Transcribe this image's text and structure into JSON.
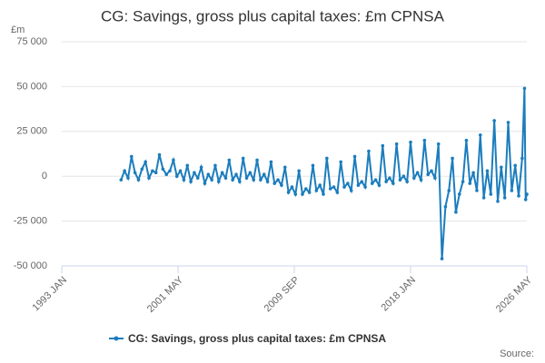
{
  "chart_data": {
    "type": "line",
    "title": "CG: Savings, gross plus capital taxes: £m CPNSA",
    "y_label": "£m",
    "source": "Source:",
    "x": [
      "1997 APR",
      "1997 JUL",
      "1997 OCT",
      "1998 JAN",
      "1998 APR",
      "1998 JUL",
      "1998 OCT",
      "1999 JAN",
      "1999 APR",
      "1999 JUL",
      "1999 OCT",
      "2000 JAN",
      "2000 APR",
      "2000 JUL",
      "2000 OCT",
      "2001 JAN",
      "2001 APR",
      "2001 JUL",
      "2001 OCT",
      "2002 JAN",
      "2002 APR",
      "2002 JUL",
      "2002 OCT",
      "2003 JAN",
      "2003 APR",
      "2003 JUL",
      "2003 OCT",
      "2004 JAN",
      "2004 APR",
      "2004 JUL",
      "2004 OCT",
      "2005 JAN",
      "2005 APR",
      "2005 JUL",
      "2005 OCT",
      "2006 JAN",
      "2006 APR",
      "2006 JUL",
      "2006 OCT",
      "2007 JAN",
      "2007 APR",
      "2007 JUL",
      "2007 OCT",
      "2008 JAN",
      "2008 APR",
      "2008 JUL",
      "2008 OCT",
      "2009 JAN",
      "2009 APR",
      "2009 JUL",
      "2009 OCT",
      "2010 JAN",
      "2010 APR",
      "2010 JUL",
      "2010 OCT",
      "2011 JAN",
      "2011 APR",
      "2011 JUL",
      "2011 OCT",
      "2012 JAN",
      "2012 APR",
      "2012 JUL",
      "2012 OCT",
      "2013 JAN",
      "2013 APR",
      "2013 JUL",
      "2013 OCT",
      "2014 JAN",
      "2014 APR",
      "2014 JUL",
      "2014 OCT",
      "2015 JAN",
      "2015 APR",
      "2015 JUL",
      "2015 OCT",
      "2016 JAN",
      "2016 APR",
      "2016 JUL",
      "2016 OCT",
      "2017 JAN",
      "2017 APR",
      "2017 JUL",
      "2017 OCT",
      "2018 JAN",
      "2018 APR",
      "2018 JUL",
      "2018 OCT",
      "2019 JAN",
      "2019 APR",
      "2019 JUL",
      "2019 OCT",
      "2020 JAN",
      "2020 APR",
      "2020 JUL",
      "2020 OCT",
      "2021 JAN",
      "2021 APR",
      "2021 JUL",
      "2021 OCT",
      "2022 JAN",
      "2022 APR",
      "2022 JUL",
      "2022 OCT",
      "2023 JAN",
      "2023 APR",
      "2023 JUL",
      "2023 OCT",
      "2024 JAN",
      "2024 APR",
      "2024 JUL",
      "2024 OCT",
      "2025 JAN",
      "2025 APR",
      "2025 JUL",
      "2025 OCT",
      "2026 JAN",
      "2026 MAR",
      "2026 APR",
      "2026 MAY"
    ],
    "series": [
      {
        "name": "CG: Savings, gross plus capital taxes: £m CPNSA",
        "color": "#1b7dbd",
        "values": [
          -2000,
          3000,
          -1000,
          11000,
          2000,
          -2000,
          4000,
          8000,
          -1000,
          3000,
          2000,
          12000,
          4000,
          1000,
          3000,
          9000,
          0,
          3000,
          -2000,
          6000,
          -3000,
          2000,
          -1000,
          5000,
          -4000,
          1000,
          -2000,
          6000,
          -3000,
          2000,
          -1000,
          9000,
          -2000,
          1000,
          -3000,
          10000,
          -1000,
          2000,
          -2000,
          9000,
          -2000,
          1000,
          -3000,
          8000,
          -4000,
          -2000,
          -5000,
          5000,
          -9000,
          -6000,
          -10000,
          3000,
          -10000,
          -7000,
          -9000,
          6000,
          -8000,
          -5000,
          -10000,
          10000,
          -7000,
          -6000,
          -9000,
          8000,
          -6000,
          -4000,
          -8000,
          11000,
          -5000,
          -3000,
          -6000,
          14000,
          -4000,
          -2000,
          -5000,
          17000,
          -3000,
          -1000,
          -4000,
          18000,
          -2000,
          0,
          -3000,
          19000,
          -1000,
          2000,
          -2000,
          20000,
          1000,
          3000,
          -1000,
          18000,
          -46000,
          -17000,
          -8000,
          10000,
          -20000,
          -10000,
          -3000,
          20000,
          -4000,
          2000,
          -8000,
          23000,
          -12000,
          3000,
          -10000,
          31000,
          -14000,
          5000,
          -12000,
          30000,
          -8000,
          6000,
          -11000,
          10000,
          49000,
          -13000,
          -10000
        ]
      }
    ],
    "xlim": [
      "1993 JAN",
      "2026 MAY"
    ],
    "xticks": [
      "1993 JAN",
      "2001 MAY",
      "2009 SEP",
      "2018 JAN",
      "2026 MAY"
    ],
    "ylim": [
      -50000,
      75000
    ],
    "yticks": [
      {
        "value": -50000,
        "label": "-50 000"
      },
      {
        "value": -25000,
        "label": "-25 000"
      },
      0,
      {
        "value": 25000,
        "label": "25 000"
      },
      {
        "value": 50000,
        "label": "50 000"
      },
      {
        "value": 75000,
        "label": "75 000"
      }
    ],
    "grid": true
  }
}
